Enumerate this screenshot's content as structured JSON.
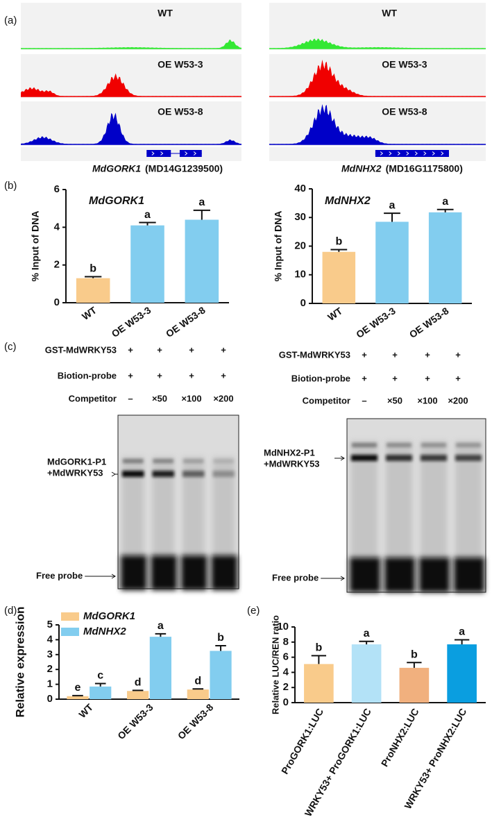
{
  "panel_labels": [
    "(a)",
    "(b)",
    "(c)",
    "(d)",
    "(e)"
  ],
  "track_colors": [
    "#33e833",
    "#f00000",
    "#0000c8"
  ],
  "tracks": [
    {
      "rows": [
        "WT",
        "OE W53-3",
        "OE W53-8"
      ],
      "gene": "MdGORK1",
      "gene_id": "(MD14G1239500)"
    },
    {
      "rows": [
        "WT",
        "OE W53-3",
        "OE W53-8"
      ],
      "gene": "MdNHX2",
      "gene_id": "(MD16G1175800)"
    }
  ],
  "emsa": [
    {
      "rows": [
        {
          "label": "GST-MdWRKY53",
          "marks": [
            "+",
            "+",
            "+",
            "+"
          ]
        },
        {
          "label": "Biotion-probe",
          "marks": [
            "+",
            "+",
            "+",
            "+"
          ]
        },
        {
          "label": "Competitor",
          "marks": [
            "–",
            "×50",
            "×100",
            "×200"
          ]
        }
      ],
      "complex_label": [
        "MdGORK1-P1",
        "+MdWRKY53"
      ],
      "free_label": "Free probe"
    },
    {
      "rows": [
        {
          "label": "GST-MdWRKY53",
          "marks": [
            "+",
            "+",
            "+",
            "+"
          ]
        },
        {
          "label": "Biotion-probe",
          "marks": [
            "+",
            "+",
            "+",
            "+"
          ]
        },
        {
          "label": "Competitor",
          "marks": [
            "–",
            "×50",
            "×100",
            "×200"
          ]
        }
      ],
      "complex_label": [
        "MdNHX2-P1",
        "+MdWRKY53"
      ],
      "free_label": "Free probe"
    }
  ],
  "chart_data": [
    {
      "type": "bar",
      "title": "MdGORK1",
      "ylabel": "% Input of DNA",
      "categories": [
        "WT",
        "OE W53-3",
        "OE W53-8"
      ],
      "series": [
        {
          "values": [
            1.3,
            4.1,
            4.4
          ],
          "errors": [
            0.08,
            0.15,
            0.5
          ],
          "letters": [
            "b",
            "a",
            "a"
          ],
          "colors": [
            "#f9cb8b",
            "#82cdef",
            "#82cdef"
          ]
        }
      ],
      "ylim": [
        0,
        6
      ],
      "yticks": [
        0,
        2,
        4,
        6
      ]
    },
    {
      "type": "bar",
      "title": "MdNHX2",
      "ylabel": "% Input of DNA",
      "categories": [
        "WT",
        "OE W53-3",
        "OE W53-8"
      ],
      "series": [
        {
          "values": [
            18,
            28.5,
            31.8
          ],
          "errors": [
            0.8,
            3,
            1
          ],
          "letters": [
            "b",
            "a",
            "a"
          ],
          "colors": [
            "#f9cb8b",
            "#82cdef",
            "#82cdef"
          ]
        }
      ],
      "ylim": [
        0,
        40
      ],
      "yticks": [
        0,
        10,
        20,
        30,
        40
      ]
    },
    {
      "type": "bar",
      "ylabel": "Relative expression",
      "categories": [
        "WT",
        "OE W53-3",
        "OE W53-8"
      ],
      "series": [
        {
          "name": "MdGORK1",
          "color": "#f9cb8b",
          "values": [
            0.2,
            0.55,
            0.65
          ],
          "errors": [
            0.04,
            0.04,
            0.04
          ],
          "letters": [
            "e",
            "d",
            "d"
          ]
        },
        {
          "name": "MdNHX2",
          "color": "#82cdef",
          "values": [
            0.85,
            4.2,
            3.25
          ],
          "errors": [
            0.2,
            0.2,
            0.35
          ],
          "letters": [
            "c",
            "a",
            "b"
          ]
        }
      ],
      "ylim": [
        0,
        5
      ],
      "yticks": [
        0,
        1,
        2,
        3,
        4,
        5
      ]
    },
    {
      "type": "bar",
      "ylabel": "Relative LUC/REN ratio",
      "categories": [
        "ProGORK1:LUC",
        "WRKY53+ ProGORK1:LUC",
        "ProNHX2:LUC",
        "WRKY53+ ProNHX2:LUC"
      ],
      "series": [
        {
          "values": [
            5.1,
            7.7,
            4.6,
            7.7
          ],
          "errors": [
            1.1,
            0.4,
            0.7,
            0.6
          ],
          "letters": [
            "b",
            "a",
            "b",
            "a"
          ],
          "colors": [
            "#f9cb8b",
            "#b3e2f7",
            "#f1b07e",
            "#0a9ee0"
          ]
        }
      ],
      "ylim": [
        0,
        10
      ],
      "yticks": [
        0,
        2,
        4,
        6,
        8,
        10
      ]
    }
  ]
}
